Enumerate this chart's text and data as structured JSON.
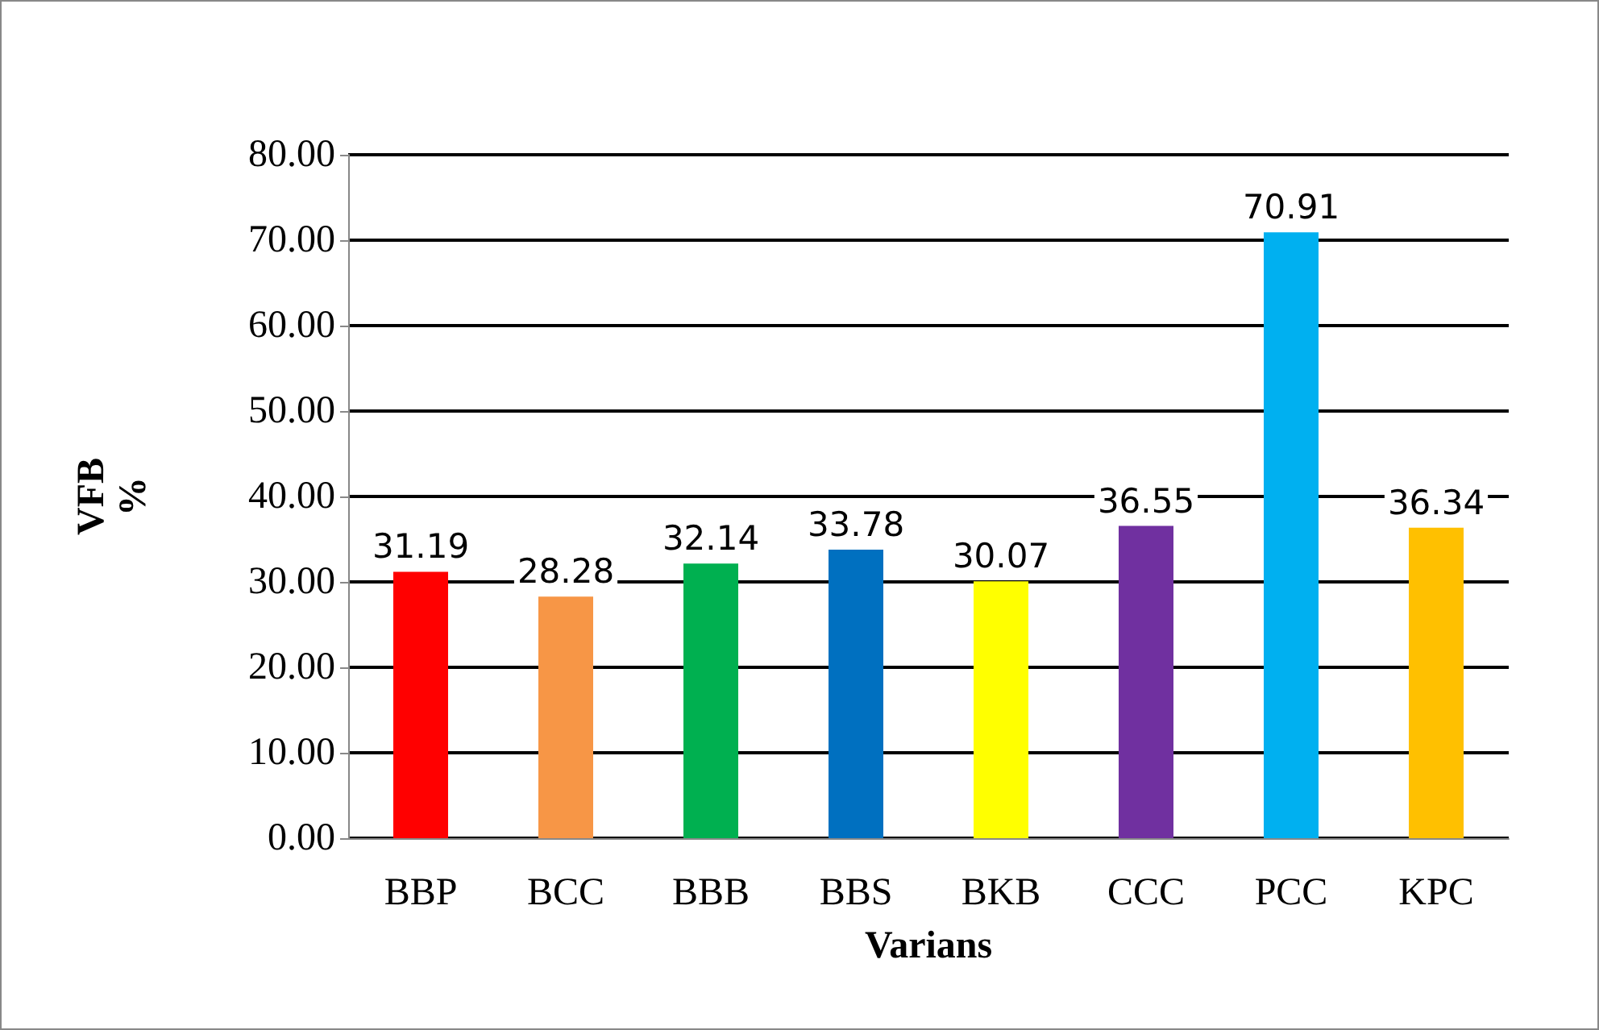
{
  "chart_data": {
    "type": "bar",
    "xlabel": "Varians",
    "ylabel": "VFB\n%",
    "categories": [
      "BBP",
      "BCC",
      "BBB",
      "BBS",
      "BKB",
      "CCC",
      "PCC",
      "KPC"
    ],
    "values": [
      31.19,
      28.28,
      32.14,
      33.78,
      30.07,
      36.55,
      70.91,
      36.34
    ],
    "colors": [
      "#ff0000",
      "#f79646",
      "#00b050",
      "#0070c0",
      "#ffff00",
      "#7030a0",
      "#00b0f0",
      "#ffc000"
    ],
    "ylim": [
      0,
      80
    ],
    "yticks": [
      {
        "value": 0,
        "label": "0.00"
      },
      {
        "value": 10,
        "label": "10.00"
      },
      {
        "value": 20,
        "label": "20.00"
      },
      {
        "value": 30,
        "label": "30.00"
      },
      {
        "value": 40,
        "label": "40.00"
      },
      {
        "value": 50,
        "label": "50.00"
      },
      {
        "value": 60,
        "label": "60.00"
      },
      {
        "value": 70,
        "label": "70.00"
      },
      {
        "value": 80,
        "label": "80.00"
      }
    ],
    "grid": "y",
    "data_labels": true
  }
}
